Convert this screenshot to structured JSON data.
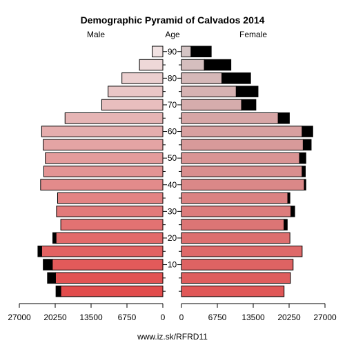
{
  "chart_data": {
    "type": "bar",
    "title": "Demographic Pyramid of Calvados 2014",
    "left_header": "Male",
    "center_header": "Age",
    "right_header": "Female",
    "footer": "www.iz.sk/RFRD11",
    "age_ticks": [
      "10",
      "20",
      "30",
      "40",
      "50",
      "60",
      "70",
      "80",
      "90"
    ],
    "x_ticks_left": [
      "27000",
      "20250",
      "13500",
      "6750",
      "0"
    ],
    "x_ticks_right": [
      "0",
      "6750",
      "13500",
      "20250",
      "27000"
    ],
    "xlim": [
      0,
      27000
    ],
    "age_groups": [
      "0-4",
      "5-9",
      "10-14",
      "15-19",
      "20-24",
      "25-29",
      "30-34",
      "35-39",
      "40-44",
      "45-49",
      "50-54",
      "55-59",
      "60-64",
      "65-69",
      "70-74",
      "75-79",
      "80-84",
      "85-89",
      "90+"
    ],
    "series": [
      {
        "name": "Male",
        "values": [
          19200,
          20200,
          20800,
          22800,
          20100,
          19200,
          20000,
          19800,
          23000,
          22400,
          22100,
          22500,
          22800,
          18400,
          11500,
          10300,
          7700,
          4400,
          2000
        ],
        "excess": [
          900,
          1500,
          1700,
          700,
          600,
          0,
          0,
          0,
          0,
          0,
          0,
          0,
          0,
          0,
          0,
          0,
          0,
          0,
          0
        ]
      },
      {
        "name": "Female",
        "values": [
          19300,
          20500,
          21000,
          22700,
          20400,
          19300,
          20600,
          20000,
          23100,
          22700,
          22200,
          22900,
          22700,
          18200,
          11300,
          10300,
          7600,
          4300,
          1800
        ],
        "excess": [
          0,
          0,
          0,
          0,
          0,
          600,
          700,
          400,
          300,
          600,
          1200,
          1500,
          2000,
          2100,
          2700,
          4100,
          5400,
          5000,
          3800
        ]
      }
    ],
    "bar_colors": [
      "#e24c4c",
      "#e25353",
      "#e25a5a",
      "#e26262",
      "#e26a6a",
      "#e27272",
      "#e27a7a",
      "#e38383",
      "#e38b8b",
      "#e39494",
      "#e49c9c",
      "#e4a4a4",
      "#e5adad",
      "#e6b5b5",
      "#e8bebe",
      "#e9c6c6",
      "#ebcfcf",
      "#eed8d8",
      "#f1e2e2"
    ],
    "female_bar_colors": [
      "#e05757",
      "#df5d5d",
      "#de6363",
      "#de6969",
      "#dd6f6f",
      "#dc7575",
      "#dc7c7c",
      "#db8282",
      "#da8888",
      "#d98e8e",
      "#d99494",
      "#d89a9a",
      "#d8a0a0",
      "#d7a6a6",
      "#d6acac",
      "#d6b2b2",
      "#d5b8b8",
      "#d5bebe",
      "#d4c4c4"
    ],
    "excess_color": "#000000",
    "grid": false
  }
}
